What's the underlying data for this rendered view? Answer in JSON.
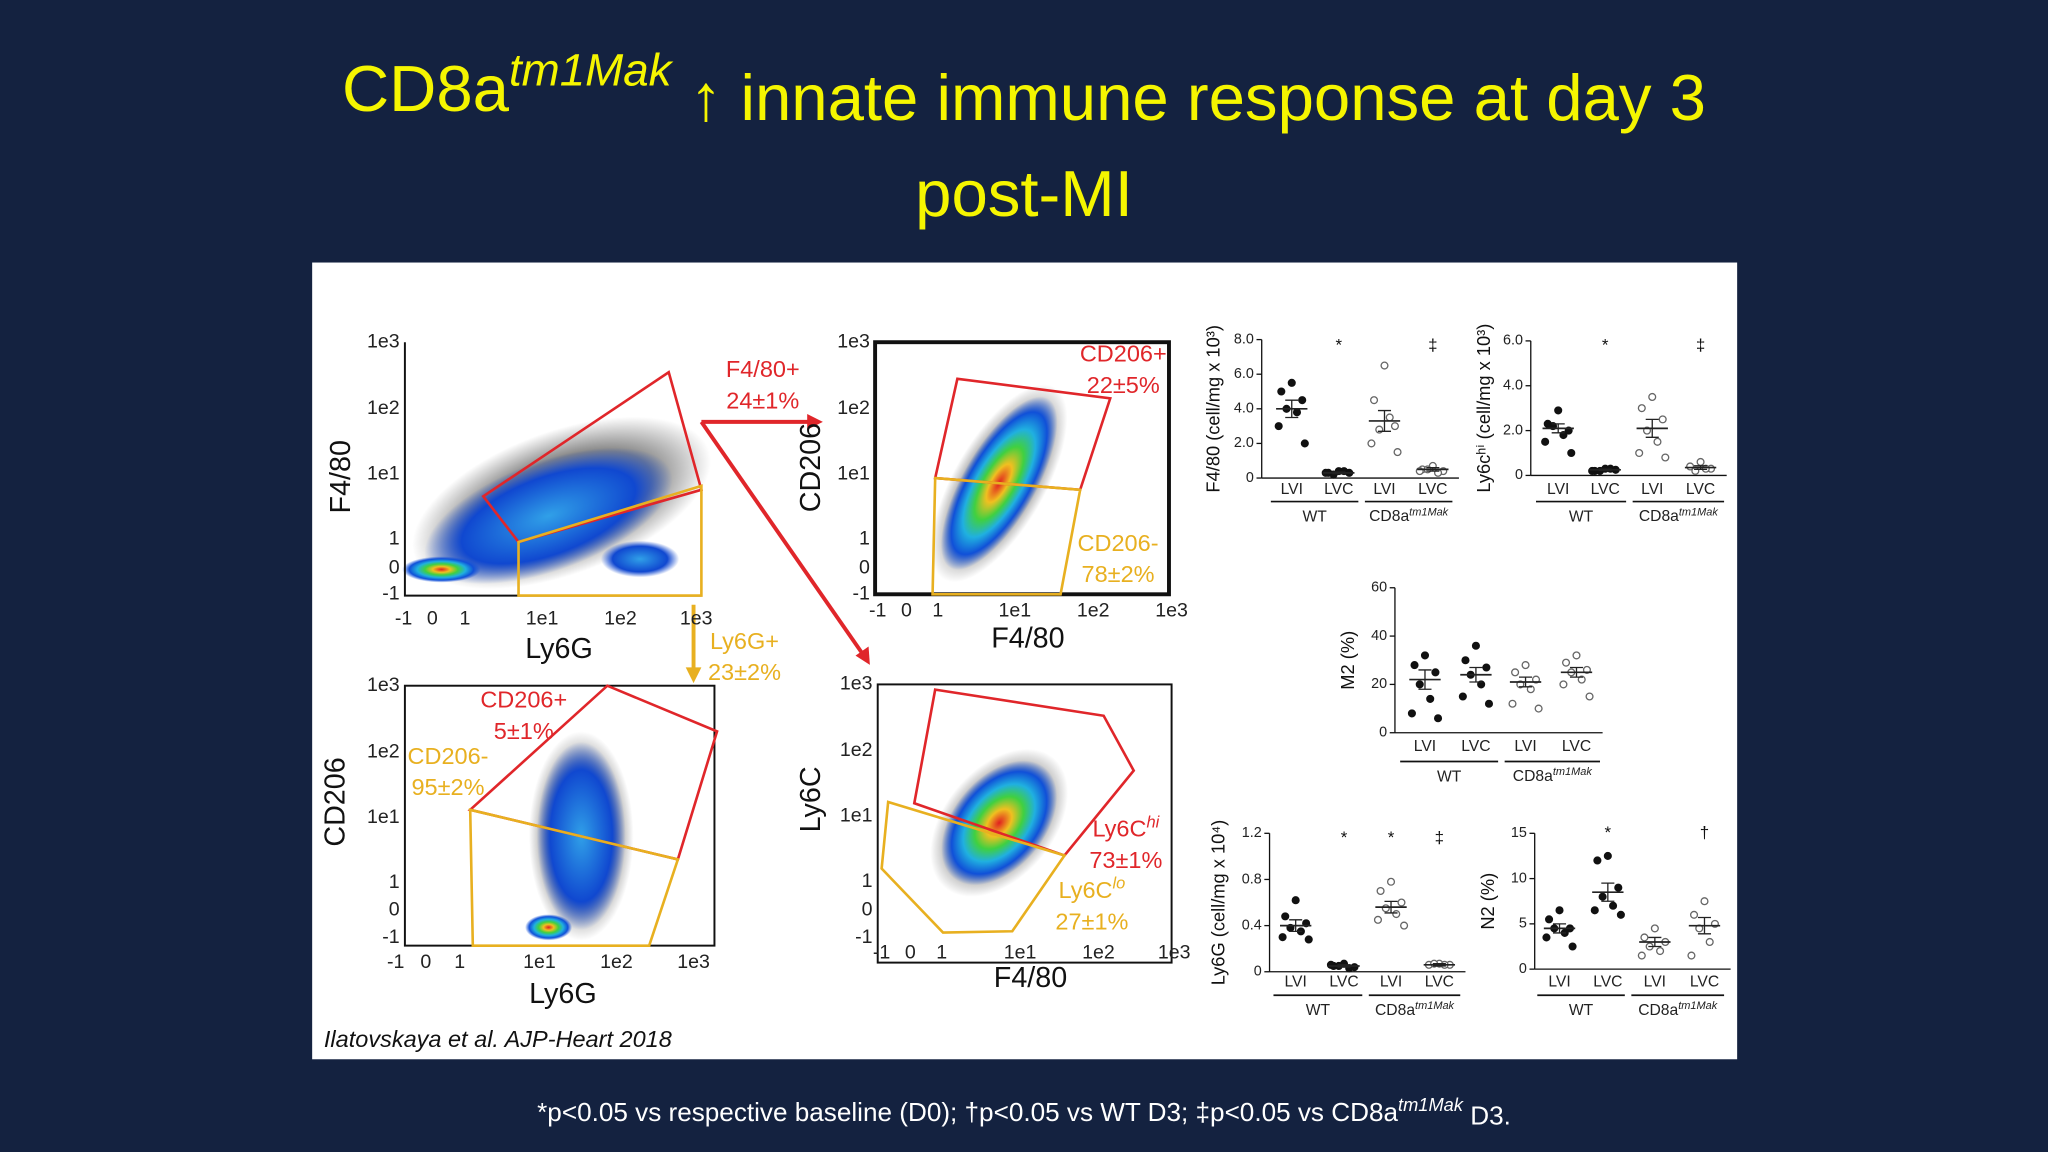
{
  "title": {
    "line1": {
      "base": "CD8a",
      "sup": "tm1Mak",
      "rest": " ↑ innate immune response at day 3"
    },
    "line2": "post-MI"
  },
  "figure": {
    "citation": "Ilatovskaya et al. AJP-Heart 2018",
    "flow_panels": [
      {
        "ylabel": "F4/80",
        "xlabel": "Ly6G",
        "yticks": [
          "1e3",
          "1e2",
          "1e1",
          "1",
          "0",
          "-1"
        ],
        "xticks": [
          "-1",
          "0",
          "1",
          "1e1",
          "1e2",
          "1e3"
        ],
        "gates": [
          {
            "name": "F4/80+",
            "value": "24±1%",
            "color": "#e0262a"
          },
          {
            "name": "Ly6G+",
            "value": "23±2%",
            "color": "#e8b020"
          }
        ]
      },
      {
        "ylabel": "CD206",
        "xlabel": "F4/80",
        "yticks": [
          "1e3",
          "1e2",
          "1e1",
          "1",
          "0",
          "-1"
        ],
        "xticks": [
          "-1",
          "0",
          "1",
          "1e1",
          "1e2",
          "1e3"
        ],
        "gates": [
          {
            "name": "CD206+",
            "value": "22±5%",
            "color": "#e0262a"
          },
          {
            "name": "CD206-",
            "value": "78±2%",
            "color": "#e8b020"
          }
        ]
      },
      {
        "ylabel": "CD206",
        "xlabel": "Ly6G",
        "yticks": [
          "1e3",
          "1e2",
          "1e1",
          "1",
          "0",
          "-1"
        ],
        "xticks": [
          "-1",
          "0",
          "1",
          "1e1",
          "1e2",
          "1e3"
        ],
        "gates": [
          {
            "name": "CD206+",
            "value": "5±1%",
            "color": "#e0262a"
          },
          {
            "name": "CD206-",
            "value": "95±2%",
            "color": "#e8b020"
          }
        ]
      },
      {
        "ylabel": "Ly6C",
        "xlabel": "F4/80",
        "yticks": [
          "1e3",
          "1e2",
          "1e1",
          "1",
          "0",
          "-1"
        ],
        "xticks": [
          "-1",
          "0",
          "1",
          "1e1",
          "1e2",
          "1e3"
        ],
        "gates": [
          {
            "name": {
              "base": "Ly6C",
              "sup": "hi"
            },
            "value": "73±1%",
            "color": "#e0262a"
          },
          {
            "name": {
              "base": "Ly6C",
              "sup": "lo"
            },
            "value": "27±1%",
            "color": "#e8b020"
          }
        ]
      }
    ]
  },
  "chart_data": [
    {
      "type": "dot",
      "ylabel": "F4/80 (cell/mg x 10³)",
      "categories": [
        "LVI",
        "LVC",
        "LVI",
        "LVC"
      ],
      "groups": [
        "WT",
        {
          "base": "CD8a",
          "sup": "tm1Mak"
        }
      ],
      "significance": [
        null,
        "*",
        null,
        "‡"
      ],
      "ylim": [
        0,
        8
      ],
      "yticks": [
        0,
        {
          "value": 2,
          "label": "2.0"
        },
        {
          "value": 4,
          "label": "4.0"
        },
        {
          "value": 6,
          "label": "6.0"
        },
        {
          "value": 8,
          "label": "8.0"
        }
      ],
      "points": [
        [
          5.5,
          5.0,
          4.5,
          4.0,
          3.8,
          3.0,
          2.0
        ],
        [
          0.4,
          0.3,
          0.3,
          0.2,
          0.4,
          0.3
        ],
        [
          6.5,
          4.5,
          3.0,
          2.8,
          3.5,
          2.0,
          1.5
        ],
        [
          0.7,
          0.5,
          0.4,
          0.5,
          0.3,
          0.4
        ]
      ],
      "means": [
        4.0,
        0.3,
        3.3,
        0.5
      ],
      "sems": [
        0.5,
        0.05,
        0.6,
        0.1
      ]
    },
    {
      "type": "dot",
      "ylabel": "Ly6cʰⁱ (cell/mg x 10³)",
      "categories": [
        "LVI",
        "LVC",
        "LVI",
        "LVC"
      ],
      "groups": [
        "WT",
        {
          "base": "CD8a",
          "sup": "tm1Mak"
        }
      ],
      "significance": [
        null,
        "*",
        null,
        "‡"
      ],
      "ylim": [
        0,
        6
      ],
      "yticks": [
        0,
        {
          "value": 2,
          "label": "2.0"
        },
        {
          "value": 4,
          "label": "4.0"
        },
        {
          "value": 6,
          "label": "6.0"
        }
      ],
      "points": [
        [
          2.9,
          2.3,
          2.0,
          2.2,
          1.8,
          1.5,
          1.0
        ],
        [
          0.3,
          0.2,
          0.25,
          0.2,
          0.3,
          0.2
        ],
        [
          3.5,
          3.0,
          2.5,
          2.0,
          1.5,
          1.0,
          0.8
        ],
        [
          0.6,
          0.4,
          0.3,
          0.2,
          0.3
        ]
      ],
      "means": [
        2.1,
        0.25,
        2.1,
        0.35
      ],
      "sems": [
        0.2,
        0.03,
        0.4,
        0.08
      ]
    },
    {
      "type": "dot",
      "ylabel": "M2 (%)",
      "categories": [
        "LVI",
        "LVC",
        "LVI",
        "LVC"
      ],
      "groups": [
        "WT",
        {
          "base": "CD8a",
          "sup": "tm1Mak"
        }
      ],
      "significance": [
        null,
        null,
        null,
        null
      ],
      "ylim": [
        0,
        60
      ],
      "yticks": [
        0,
        20,
        40,
        60
      ],
      "points": [
        [
          32,
          28,
          25,
          20,
          14,
          8,
          6
        ],
        [
          36,
          30,
          27,
          24,
          20,
          15,
          12
        ],
        [
          28,
          25,
          22,
          20,
          18,
          12,
          10
        ],
        [
          32,
          29,
          26,
          25,
          22,
          20,
          15
        ]
      ],
      "means": [
        22,
        24,
        21,
        25
      ],
      "sems": [
        4,
        3,
        2,
        2
      ]
    },
    {
      "type": "dot",
      "ylabel": "Ly6G (cell/mg x 10⁴)",
      "categories": [
        "LVI",
        "LVC",
        "LVI",
        "LVC"
      ],
      "groups": [
        "WT",
        {
          "base": "CD8a",
          "sup": "tm1Mak"
        }
      ],
      "significance": [
        null,
        "*",
        "*",
        "‡"
      ],
      "ylim": [
        0,
        1.2
      ],
      "yticks": [
        0,
        0.4,
        0.8,
        1.2
      ],
      "points": [
        [
          0.62,
          0.48,
          0.42,
          0.38,
          0.35,
          0.3,
          0.28
        ],
        [
          0.07,
          0.05,
          0.04,
          0.05,
          0.03,
          0.06
        ],
        [
          0.78,
          0.7,
          0.6,
          0.55,
          0.5,
          0.45,
          0.4
        ],
        [
          0.07,
          0.06,
          0.06,
          0.07,
          0.06
        ]
      ],
      "means": [
        0.4,
        0.05,
        0.56,
        0.06
      ],
      "sems": [
        0.05,
        0.01,
        0.05,
        0.01
      ]
    },
    {
      "type": "dot",
      "ylabel": "N2 (%)",
      "categories": [
        "LVI",
        "LVC",
        "LVI",
        "LVC"
      ],
      "groups": [
        "WT",
        {
          "base": "CD8a",
          "sup": "tm1Mak"
        }
      ],
      "significance": [
        null,
        "*",
        null,
        "†"
      ],
      "ylim": [
        0,
        15
      ],
      "yticks": [
        0,
        5,
        10,
        15
      ],
      "points": [
        [
          6.5,
          5.5,
          4.5,
          4.5,
          4.0,
          3.5,
          2.5
        ],
        [
          12.5,
          12,
          9,
          8,
          7,
          6.5,
          6
        ],
        [
          4.5,
          3.5,
          3,
          2.5,
          2,
          1.5
        ],
        [
          7.5,
          6,
          5,
          4.5,
          3,
          1.5
        ]
      ],
      "means": [
        4.5,
        8.5,
        3,
        4.8
      ],
      "sems": [
        0.5,
        1,
        0.5,
        0.9
      ]
    }
  ],
  "footnote": {
    "before": "*p<0.05 vs respective baseline (D0); †p<0.05 vs WT D3; ‡p<0.05 vs CD8a",
    "sup": "tm1Mak",
    "after": " D3."
  }
}
